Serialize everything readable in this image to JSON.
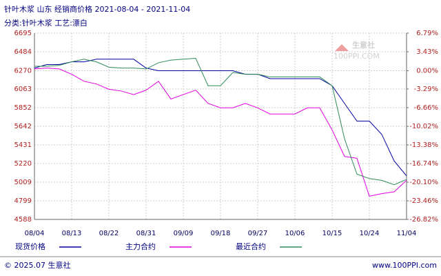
{
  "chart_data": {
    "type": "line",
    "title": "针叶木浆 山东 经销商价格 2021-08-04 - 2021-11-04",
    "subtitle": "分类:针叶木浆 工艺:漂白",
    "logo": "生意社",
    "logo_sub": "100PPI.COM",
    "footer_left": "© 2025.07 生意社",
    "footer_right": "www.100PPI.com",
    "categories": [
      "08/04",
      null,
      null,
      "08/13",
      null,
      null,
      "08/22",
      null,
      null,
      "08/31",
      null,
      null,
      "09/09",
      null,
      null,
      "09/18",
      null,
      null,
      "09/27",
      null,
      null,
      "10/06",
      null,
      null,
      "10/15",
      null,
      null,
      "10/24",
      null,
      null,
      "11/04"
    ],
    "series": [
      {
        "name": "现货价格",
        "color": "#0000a0",
        "values": [
          6300,
          6340,
          6340,
          6370,
          6370,
          6400,
          6400,
          6400,
          6400,
          6300,
          6270,
          6270,
          6270,
          6270,
          6270,
          6270,
          6270,
          6230,
          6230,
          6180,
          6180,
          6180,
          6180,
          6180,
          6100,
          5900,
          5700,
          5700,
          5550,
          5250,
          5080
        ]
      },
      {
        "name": "主力合约",
        "color": "#e000e0",
        "values": [
          6290,
          6300,
          6290,
          6230,
          6150,
          6120,
          6060,
          6040,
          6000,
          6050,
          6150,
          5950,
          6000,
          6050,
          5900,
          5850,
          5850,
          5900,
          5850,
          5780,
          5780,
          5780,
          5850,
          5850,
          5600,
          5300,
          5280,
          4850,
          4880,
          4900,
          5030
        ]
      },
      {
        "name": "最近合约",
        "color": "#2e8b57",
        "values": [
          6320,
          6320,
          6330,
          6370,
          6400,
          6370,
          6310,
          6300,
          6300,
          6290,
          6360,
          6390,
          6400,
          6410,
          6100,
          6100,
          6250,
          6230,
          6230,
          6200,
          6200,
          6200,
          6200,
          6200,
          6100,
          5500,
          5100,
          5050,
          5030,
          4980,
          5040
        ]
      }
    ],
    "ylim": [
      4588,
      6695
    ],
    "yticks": [
      4588,
      4799,
      5009,
      5220,
      5431,
      5642,
      5852,
      6063,
      6270,
      6484,
      6695
    ],
    "y2lim": [
      -26.82,
      6.79
    ],
    "y2ticks": [
      {
        "value": -26.82,
        "label": "-26.82%"
      },
      {
        "value": -23.46,
        "label": "-23.46%"
      },
      {
        "value": -20.1,
        "label": "-20.10%"
      },
      {
        "value": -16.74,
        "label": "-16.74%"
      },
      {
        "value": -13.38,
        "label": "-13.38%"
      },
      {
        "value": -10.02,
        "label": "-10.02%"
      },
      {
        "value": -6.66,
        "label": "-6.66%"
      },
      {
        "value": -3.29,
        "label": "-3.29%"
      },
      {
        "value": 0,
        "label": "0.00%"
      },
      {
        "value": 3.43,
        "label": "3.43%"
      },
      {
        "value": 6.79,
        "label": "6.79%"
      }
    ],
    "grid": true
  }
}
